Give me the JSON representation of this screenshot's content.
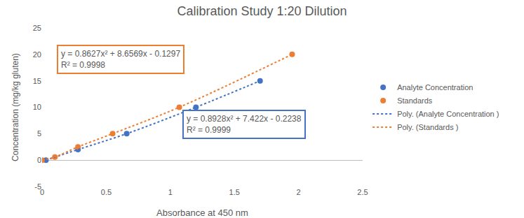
{
  "chart_data": {
    "type": "scatter",
    "title": "Calibration Study 1:20 Dilution",
    "x_label": "Absorbance at 450 nm",
    "y_label": "Concentration (mg/kg gluten)",
    "series": [
      {
        "name": "Analyte Concentration",
        "color": "#4472c4",
        "marker": "circle",
        "x": [
          0.03,
          0.28,
          0.66,
          1.2,
          1.7
        ],
        "values": [
          0,
          2,
          5,
          10,
          15
        ]
      },
      {
        "name": "Standards",
        "color": "#ed7d31",
        "marker": "circle",
        "x": [
          0,
          0.1,
          0.28,
          0.55,
          1.07,
          1.95
        ],
        "values": [
          0,
          0.6,
          2.5,
          5,
          10,
          20
        ]
      }
    ],
    "trendlines": [
      {
        "name": "Poly. (Analyte Concentration )",
        "series": "Analyte Concentration",
        "equation": "y = 0.8928x² + 7.422x - 0.2238",
        "r_squared": "R² = 0.9999",
        "color": "#4472c4",
        "line_style": "dotted"
      },
      {
        "name": "Poly. (Standards )",
        "series": "Standards",
        "equation": "y = 0.8627x² + 8.6569x - 0.1297",
        "r_squared": "R² = 0.9998",
        "color": "#ed7d31",
        "line_style": "dotted"
      }
    ],
    "xlim": [
      0,
      2.5
    ],
    "xticks": [
      0,
      0.5,
      1,
      1.5,
      2,
      2.5
    ],
    "ylim": [
      -5,
      25
    ],
    "yticks": [
      -5,
      0,
      5,
      10,
      15,
      20,
      25
    ],
    "grid": false,
    "legend": "right"
  }
}
